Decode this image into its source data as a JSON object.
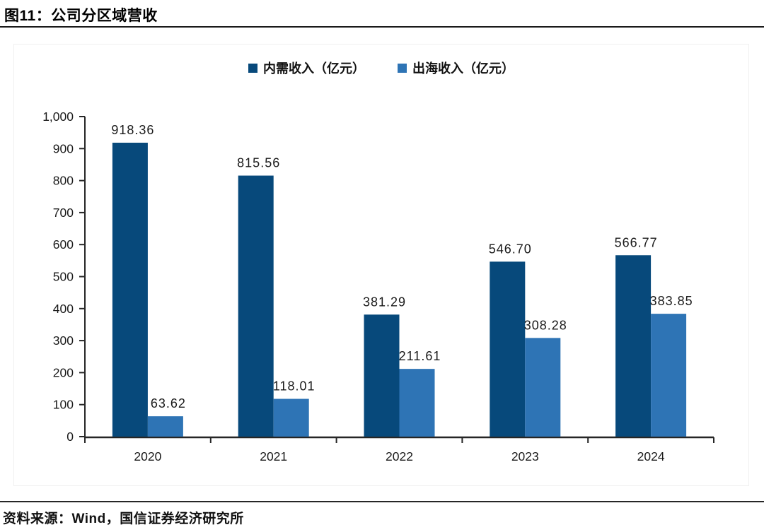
{
  "figure": {
    "title": "图11：公司分区域营收",
    "source": "资料来源：Wind，国信证券经济研究所"
  },
  "chart_data": {
    "type": "bar",
    "title": "",
    "categories": [
      "2020",
      "2021",
      "2022",
      "2023",
      "2024"
    ],
    "series": [
      {
        "name": "内需收入（亿元）",
        "color": "#07497B",
        "values": [
          918.36,
          815.56,
          381.29,
          546.7,
          566.77
        ]
      },
      {
        "name": "出海收入（亿元）",
        "color": "#2E74B5",
        "values": [
          63.62,
          118.01,
          211.61,
          308.28,
          383.85
        ]
      }
    ],
    "xlabel": "",
    "ylabel": "",
    "ylim": [
      0,
      1000
    ],
    "ytick_step": 100,
    "ytick_labels": [
      "0",
      "100",
      "200",
      "300",
      "400",
      "500",
      "600",
      "700",
      "800",
      "900",
      "1,000"
    ],
    "grid": false,
    "legend_position": "top",
    "data_labels": true,
    "axis_color": "#262626",
    "label_color": "#1a1a1a"
  }
}
